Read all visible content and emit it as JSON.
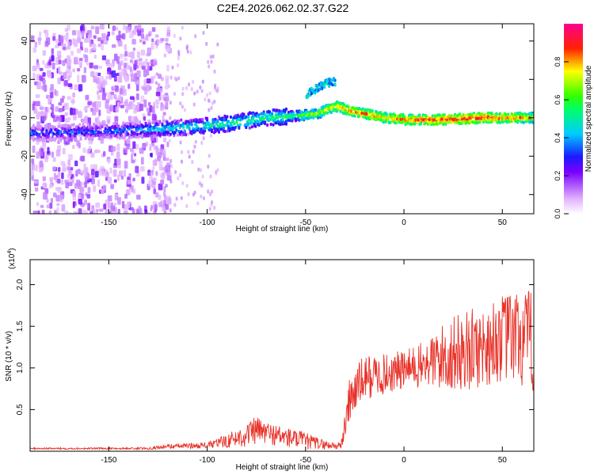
{
  "title": "C2E4.2026.062.02.37.G22",
  "chart_data": [
    {
      "type": "heatmap",
      "xlabel": "Height of straight line (km)",
      "ylabel": "Frequency (Hz)",
      "xlim": [
        -190,
        66
      ],
      "ylim": [
        -50,
        49
      ],
      "xticks": [
        -150,
        -100,
        -50,
        0,
        50
      ],
      "xtick_labels": [
        "-150",
        "-100",
        "-50",
        "0",
        "50"
      ],
      "yticks": [
        -40,
        -20,
        0,
        20,
        40
      ],
      "ytick_labels": [
        "-40",
        "-20",
        "0",
        "20",
        "40"
      ],
      "colorbar": {
        "label": "Normalized spectral amplitude",
        "range": [
          0,
          1
        ],
        "ticks": [
          0.0,
          0.2,
          0.4,
          0.6,
          0.8
        ],
        "tick_labels": [
          "0.0",
          "0.2",
          "0.4",
          "0.6",
          "0.8"
        ]
      },
      "ridge": {
        "description_x": [
          -190,
          -150,
          -130,
          -110,
          -90,
          -70,
          -55,
          -45,
          -35,
          -25,
          -10,
          0,
          20,
          40,
          60,
          66
        ],
        "frequency": [
          -8,
          -7,
          -6,
          -5,
          -3,
          0,
          1,
          2,
          6,
          3,
          0,
          -1,
          -1,
          0,
          0,
          0
        ],
        "amplitude": [
          0.35,
          0.35,
          0.45,
          0.5,
          0.55,
          0.55,
          0.6,
          0.7,
          0.8,
          0.85,
          0.8,
          0.85,
          0.9,
          0.9,
          0.8,
          0.75
        ]
      },
      "upper_branch": {
        "x": [
          -50,
          -45,
          -40,
          -35
        ],
        "frequency": [
          12,
          15,
          18,
          19
        ]
      }
    },
    {
      "type": "line",
      "xlabel": "Height of straight line (km)",
      "ylabel": "SNR (10 * v/v)",
      "y_multiplier": "(x10^4)",
      "multiplier_base": "(x10",
      "multiplier_exp": "4",
      "multiplier_close": ")",
      "xlim": [
        -190,
        66
      ],
      "ylim": [
        0,
        23000
      ],
      "xticks": [
        -150,
        -100,
        -50,
        0,
        50
      ],
      "xtick_labels": [
        "-150",
        "-100",
        "-50",
        "0",
        "50"
      ],
      "yticks": [
        5000,
        10000,
        15000,
        20000
      ],
      "ytick_labels": [
        "0.5",
        "1.0",
        "1.5",
        "2.0"
      ],
      "color": "#e8332a",
      "envelope": {
        "x": [
          -190,
          -150,
          -130,
          -120,
          -100,
          -90,
          -80,
          -75,
          -70,
          -60,
          -50,
          -40,
          -32,
          -30,
          -28,
          -25,
          -20,
          -10,
          0,
          10,
          20,
          30,
          40,
          50,
          55,
          60,
          66
        ],
        "baseline": [
          300,
          300,
          300,
          500,
          600,
          1000,
          1500,
          2000,
          1800,
          1300,
          900,
          600,
          500,
          2500,
          5000,
          6500,
          8000,
          8500,
          9000,
          9500,
          10000,
          10500,
          11000,
          12000,
          12000,
          11500,
          11000
        ],
        "amplitude": [
          150,
          150,
          200,
          400,
          500,
          1200,
          2000,
          2500,
          2000,
          1800,
          1500,
          800,
          600,
          3000,
          4000,
          4000,
          4000,
          3500,
          3500,
          4000,
          6000,
          7000,
          7000,
          7500,
          8000,
          9000,
          9000
        ]
      }
    }
  ]
}
